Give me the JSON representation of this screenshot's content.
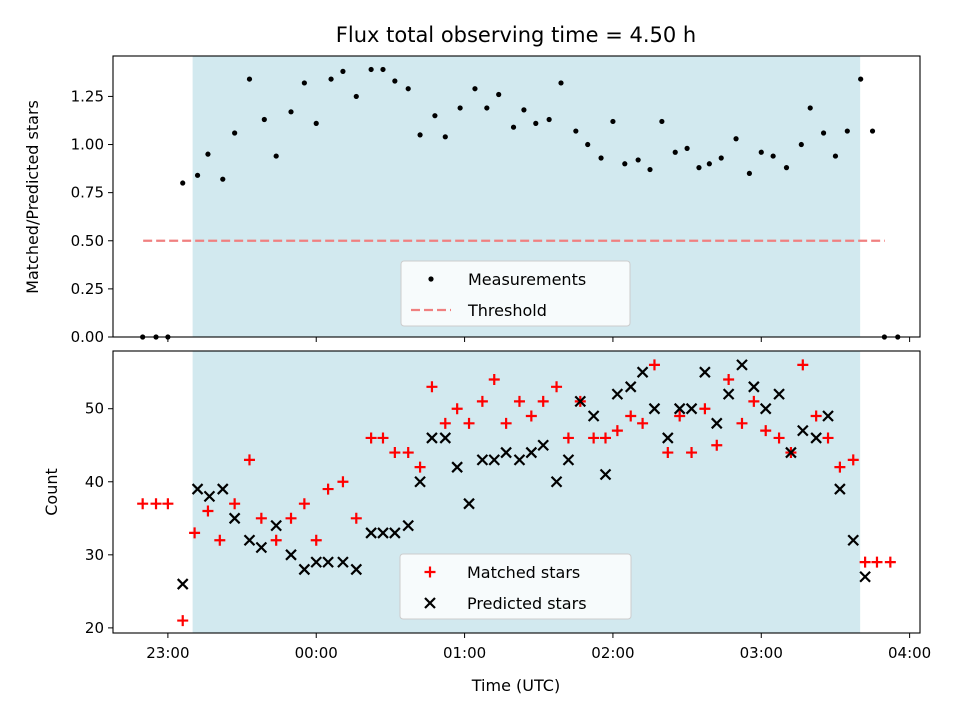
{
  "chart_data": {
    "title": "Flux total observing time = 4.50 h",
    "xlabel": "Time (UTC)",
    "x_ticks": [
      "23:00",
      "00:00",
      "01:00",
      "02:00",
      "03:00",
      "04:00"
    ],
    "x_range_hours": [
      22.63,
      28.07
    ],
    "observing_window": {
      "start": "23:10",
      "end": "03:40",
      "color": "#d2e9ef"
    },
    "panels": [
      {
        "type": "scatter",
        "ylabel": "Matched/Predicted stars",
        "ylim": [
          0,
          1.46
        ],
        "y_ticks": [
          "0.00",
          "0.25",
          "0.50",
          "0.75",
          "1.00",
          "1.25"
        ],
        "legend_position": "lower-center",
        "threshold": {
          "name": "Threshold",
          "value": 0.5,
          "x_start": "22:50",
          "x_end": "03:50",
          "color": "#f08080"
        },
        "series": [
          {
            "name": "Measurements",
            "marker": "dot",
            "color": "#000000",
            "points": [
              [
                22.83,
                0.0
              ],
              [
                22.92,
                0.0
              ],
              [
                23.0,
                0.0
              ],
              [
                23.1,
                0.8
              ],
              [
                23.2,
                0.84
              ],
              [
                23.27,
                0.95
              ],
              [
                23.37,
                0.82
              ],
              [
                23.45,
                1.06
              ],
              [
                23.55,
                1.34
              ],
              [
                23.65,
                1.13
              ],
              [
                23.73,
                0.94
              ],
              [
                23.83,
                1.17
              ],
              [
                23.92,
                1.32
              ],
              [
                24.0,
                1.11
              ],
              [
                24.1,
                1.34
              ],
              [
                24.18,
                1.38
              ],
              [
                24.27,
                1.25
              ],
              [
                24.37,
                1.39
              ],
              [
                24.45,
                1.39
              ],
              [
                24.53,
                1.33
              ],
              [
                24.62,
                1.29
              ],
              [
                24.7,
                1.05
              ],
              [
                24.8,
                1.15
              ],
              [
                24.87,
                1.04
              ],
              [
                24.97,
                1.19
              ],
              [
                25.07,
                1.29
              ],
              [
                25.15,
                1.19
              ],
              [
                25.23,
                1.26
              ],
              [
                25.33,
                1.09
              ],
              [
                25.4,
                1.18
              ],
              [
                25.48,
                1.11
              ],
              [
                25.57,
                1.13
              ],
              [
                25.65,
                1.32
              ],
              [
                25.75,
                1.07
              ],
              [
                25.83,
                1.0
              ],
              [
                25.92,
                0.93
              ],
              [
                26.0,
                1.12
              ],
              [
                26.08,
                0.9
              ],
              [
                26.17,
                0.92
              ],
              [
                26.25,
                0.87
              ],
              [
                26.33,
                1.12
              ],
              [
                26.42,
                0.96
              ],
              [
                26.5,
                0.98
              ],
              [
                26.58,
                0.88
              ],
              [
                26.65,
                0.9
              ],
              [
                26.73,
                0.93
              ],
              [
                26.83,
                1.03
              ],
              [
                26.92,
                0.85
              ],
              [
                27.0,
                0.96
              ],
              [
                27.08,
                0.94
              ],
              [
                27.17,
                0.88
              ],
              [
                27.27,
                1.0
              ],
              [
                27.33,
                1.19
              ],
              [
                27.42,
                1.06
              ],
              [
                27.5,
                0.94
              ],
              [
                27.58,
                1.07
              ],
              [
                27.67,
                1.34
              ],
              [
                27.75,
                1.07
              ],
              [
                27.83,
                0.0
              ],
              [
                27.92,
                0.0
              ]
            ]
          }
        ]
      },
      {
        "type": "scatter",
        "ylabel": "Count",
        "ylim": [
          19.3,
          57.9
        ],
        "y_ticks": [
          "20",
          "30",
          "40",
          "50"
        ],
        "legend_position": "lower-center",
        "series": [
          {
            "name": "Matched stars",
            "marker": "plus",
            "color": "#ff0000",
            "points": [
              [
                22.83,
                37
              ],
              [
                22.92,
                37
              ],
              [
                23.0,
                37
              ],
              [
                23.1,
                21
              ],
              [
                23.18,
                33
              ],
              [
                23.27,
                36
              ],
              [
                23.35,
                32
              ],
              [
                23.45,
                37
              ],
              [
                23.55,
                43
              ],
              [
                23.63,
                35
              ],
              [
                23.73,
                32
              ],
              [
                23.83,
                35
              ],
              [
                23.92,
                37
              ],
              [
                24.0,
                32
              ],
              [
                24.08,
                39
              ],
              [
                24.18,
                40
              ],
              [
                24.27,
                35
              ],
              [
                24.37,
                46
              ],
              [
                24.45,
                46
              ],
              [
                24.53,
                44
              ],
              [
                24.62,
                44
              ],
              [
                24.7,
                42
              ],
              [
                24.78,
                53
              ],
              [
                24.87,
                48
              ],
              [
                24.95,
                50
              ],
              [
                25.03,
                48
              ],
              [
                25.12,
                51
              ],
              [
                25.2,
                54
              ],
              [
                25.28,
                48
              ],
              [
                25.37,
                51
              ],
              [
                25.45,
                49
              ],
              [
                25.53,
                51
              ],
              [
                25.62,
                53
              ],
              [
                25.7,
                46
              ],
              [
                25.78,
                51
              ],
              [
                25.87,
                46
              ],
              [
                25.95,
                46
              ],
              [
                26.03,
                47
              ],
              [
                26.12,
                49
              ],
              [
                26.2,
                48
              ],
              [
                26.28,
                56
              ],
              [
                26.37,
                44
              ],
              [
                26.45,
                49
              ],
              [
                26.53,
                44
              ],
              [
                26.62,
                50
              ],
              [
                26.7,
                45
              ],
              [
                26.78,
                54
              ],
              [
                26.87,
                48
              ],
              [
                26.95,
                51
              ],
              [
                27.03,
                47
              ],
              [
                27.12,
                46
              ],
              [
                27.2,
                44
              ],
              [
                27.28,
                56
              ],
              [
                27.37,
                49
              ],
              [
                27.45,
                46
              ],
              [
                27.53,
                42
              ],
              [
                27.62,
                43
              ],
              [
                27.7,
                29
              ],
              [
                27.78,
                29
              ],
              [
                27.87,
                29
              ]
            ]
          },
          {
            "name": "Predicted stars",
            "marker": "x",
            "color": "#000000",
            "points": [
              [
                23.1,
                26
              ],
              [
                23.2,
                39
              ],
              [
                23.28,
                38
              ],
              [
                23.37,
                39
              ],
              [
                23.45,
                35
              ],
              [
                23.55,
                32
              ],
              [
                23.63,
                31
              ],
              [
                23.73,
                34
              ],
              [
                23.83,
                30
              ],
              [
                23.92,
                28
              ],
              [
                24.0,
                29
              ],
              [
                24.08,
                29
              ],
              [
                24.18,
                29
              ],
              [
                24.27,
                28
              ],
              [
                24.37,
                33
              ],
              [
                24.45,
                33
              ],
              [
                24.53,
                33
              ],
              [
                24.62,
                34
              ],
              [
                24.7,
                40
              ],
              [
                24.78,
                46
              ],
              [
                24.87,
                46
              ],
              [
                24.95,
                42
              ],
              [
                25.03,
                37
              ],
              [
                25.12,
                43
              ],
              [
                25.2,
                43
              ],
              [
                25.28,
                44
              ],
              [
                25.37,
                43
              ],
              [
                25.45,
                44
              ],
              [
                25.53,
                45
              ],
              [
                25.62,
                40
              ],
              [
                25.7,
                43
              ],
              [
                25.78,
                51
              ],
              [
                25.87,
                49
              ],
              [
                25.95,
                41
              ],
              [
                26.03,
                52
              ],
              [
                26.12,
                53
              ],
              [
                26.2,
                55
              ],
              [
                26.28,
                50
              ],
              [
                26.37,
                46
              ],
              [
                26.45,
                50
              ],
              [
                26.53,
                50
              ],
              [
                26.62,
                55
              ],
              [
                26.7,
                48
              ],
              [
                26.78,
                52
              ],
              [
                26.87,
                56
              ],
              [
                26.95,
                53
              ],
              [
                27.03,
                50
              ],
              [
                27.12,
                52
              ],
              [
                27.2,
                44
              ],
              [
                27.28,
                47
              ],
              [
                27.37,
                46
              ],
              [
                27.45,
                49
              ],
              [
                27.53,
                39
              ],
              [
                27.62,
                32
              ],
              [
                27.7,
                27
              ]
            ]
          }
        ]
      }
    ]
  }
}
